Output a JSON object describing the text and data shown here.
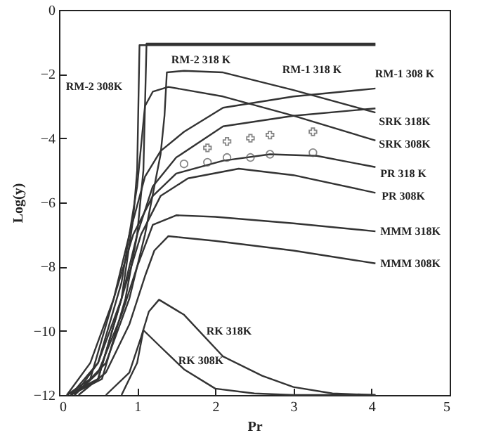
{
  "chart_data": {
    "type": "line",
    "xlabel": "Pr",
    "ylabel": "Log(y)",
    "xlim": [
      0,
      5
    ],
    "ylim": [
      -12,
      0
    ],
    "xticks": [
      0,
      1,
      2,
      3,
      4,
      5
    ],
    "yticks": [
      -12,
      -10,
      -8,
      -6,
      -4,
      -2,
      0
    ],
    "grid": false,
    "marker": "none",
    "line_style": "solid",
    "series": [
      {
        "color": "#333333",
        "x": [
          0.1,
          0.5,
          0.8,
          0.95,
          1.0,
          1.03,
          4.05
        ],
        "values": [
          -12,
          -11.5,
          -9,
          -6.5,
          -5,
          -1.1,
          -1.1
        ]
      },
      {
        "color": "#333333",
        "x": [
          0.15,
          0.55,
          0.85,
          1.0,
          1.08,
          1.12,
          4.05
        ],
        "values": [
          -12,
          -11.5,
          -9,
          -7,
          -5,
          -1.05,
          -1.05
        ]
      },
      {
        "color": "#333333",
        "x": [
          0.1,
          0.4,
          0.7,
          0.9,
          1.1,
          1.3,
          1.6,
          2.1,
          3,
          4.05
        ],
        "values": [
          -12,
          -11.5,
          -9,
          -7,
          -5.2,
          -4.4,
          -3.8,
          -3.05,
          -2.7,
          -2.45
        ]
      },
      {
        "color": "#333333",
        "x": [
          0.15,
          0.5,
          0.8,
          1.0,
          1.2,
          1.5,
          2.1,
          3,
          4.05
        ],
        "values": [
          -12,
          -11.5,
          -9,
          -7,
          -5.5,
          -4.6,
          -3.63,
          -3.3,
          -3.07
        ]
      },
      {
        "color": "#333333",
        "x": [
          0.2,
          0.6,
          0.9,
          1.1,
          1.3,
          1.35,
          1.38,
          1.6,
          2.1,
          3,
          4.05
        ],
        "values": [
          -12,
          -11,
          -9,
          -7,
          -4.5,
          -3.3,
          -1.95,
          -1.9,
          -1.95,
          -2.5,
          -3.2
        ]
      },
      {
        "color": "#333333",
        "x": [
          0.2,
          0.5,
          0.8,
          1.0,
          1.1,
          1.2,
          1.4,
          2.1,
          3,
          4.05
        ],
        "values": [
          -12,
          -11,
          -8.5,
          -5.5,
          -3.0,
          -2.55,
          -2.4,
          -2.7,
          -3.3,
          -4.07
        ]
      },
      {
        "color": "#333333",
        "x": [
          0.1,
          0.4,
          0.7,
          0.95,
          1.2,
          1.5,
          2.1,
          2.7,
          3.3,
          4.05
        ],
        "values": [
          -12,
          -11,
          -9,
          -7,
          -5.8,
          -5.1,
          -4.7,
          -4.5,
          -4.55,
          -4.9
        ]
      },
      {
        "color": "#333333",
        "x": [
          0.15,
          0.5,
          0.8,
          1.05,
          1.3,
          1.65,
          2.3,
          3,
          4.05
        ],
        "values": [
          -12,
          -11,
          -9,
          -7,
          -5.8,
          -5.25,
          -4.95,
          -5.15,
          -5.7
        ]
      },
      {
        "color": "#333333",
        "x": [
          0.2,
          0.5,
          0.8,
          1.0,
          1.2,
          1.5,
          2,
          3,
          4.05
        ],
        "values": [
          -12,
          -11.3,
          -9.5,
          -8,
          -6.7,
          -6.4,
          -6.45,
          -6.65,
          -6.9
        ]
      },
      {
        "color": "#333333",
        "x": [
          0.25,
          0.6,
          0.9,
          1.1,
          1.22,
          1.4,
          2,
          3,
          4.05
        ],
        "values": [
          -12,
          -11.3,
          -9.8,
          -8.3,
          -7.5,
          -7.05,
          -7.2,
          -7.5,
          -7.9
        ]
      },
      {
        "color": "#333333",
        "x": [
          0.6,
          0.9,
          1.05,
          1.15,
          1.28,
          1.6,
          2.1,
          2.6,
          3,
          3.5,
          4.05
        ],
        "values": [
          -12,
          -11.3,
          -10.2,
          -9.4,
          -9.03,
          -9.5,
          -10.8,
          -11.4,
          -11.75,
          -11.95,
          -12
        ]
      },
      {
        "color": "#333333",
        "x": [
          0.8,
          1.0,
          1.08,
          1.3,
          1.6,
          2,
          2.5,
          3,
          4.05
        ],
        "values": [
          -12,
          -11,
          -9.98,
          -10.5,
          -11.2,
          -11.8,
          -11.95,
          -12,
          -12
        ]
      },
      {
        "type": "scatter",
        "marker": "cross",
        "color": "#555555",
        "x": [
          1.9,
          2.15,
          2.45,
          2.7,
          3.25
        ],
        "values": [
          -4.3,
          -4.1,
          -4.0,
          -3.9,
          -3.8
        ]
      },
      {
        "type": "scatter",
        "marker": "circle",
        "color": "#555555",
        "x": [
          1.6,
          1.9,
          2.15,
          2.45,
          2.7,
          3.25
        ],
        "values": [
          -4.8,
          -4.75,
          -4.6,
          -4.6,
          -4.5,
          -4.45
        ]
      }
    ],
    "annotations": [
      "RM-2 318 K",
      "RM-2 308K",
      "RM-1 318 K",
      "RM-1 308 K",
      "SRK 318K",
      "SRK 308K",
      "PR 318 K",
      "PR 308K",
      "MMM 318K",
      "MMM 308K",
      "RK 318K",
      "RK 308K"
    ]
  }
}
